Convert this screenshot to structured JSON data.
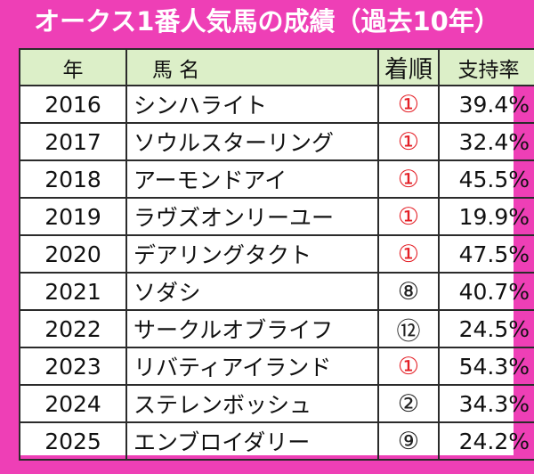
{
  "title": "オークス1番人気馬の成績（過去10年）",
  "colors": {
    "background": "#ee3fb6",
    "header": "#dcefc8",
    "win": "#e41f26"
  },
  "headers": {
    "year": "年",
    "name": "馬 名",
    "rank": "着順",
    "pct": "支持率"
  },
  "rows": [
    {
      "year": "2016",
      "name": "シンハライト",
      "rank": "①",
      "win": true,
      "pct": "39.4%"
    },
    {
      "year": "2017",
      "name": "ソウルスターリング",
      "rank": "①",
      "win": true,
      "pct": "32.4%"
    },
    {
      "year": "2018",
      "name": "アーモンドアイ",
      "rank": "①",
      "win": true,
      "pct": "45.5%"
    },
    {
      "year": "2019",
      "name": "ラヴズオンリーユー",
      "rank": "①",
      "win": true,
      "pct": "19.9%"
    },
    {
      "year": "2020",
      "name": "デアリングタクト",
      "rank": "①",
      "win": true,
      "pct": "47.5%"
    },
    {
      "year": "2021",
      "name": "ソダシ",
      "rank": "⑧",
      "win": false,
      "pct": "40.7%"
    },
    {
      "year": "2022",
      "name": "サークルオブライフ",
      "rank": "⑫",
      "win": false,
      "pct": "24.5%"
    },
    {
      "year": "2023",
      "name": "リバティアイランド",
      "rank": "①",
      "win": true,
      "pct": "54.3%"
    },
    {
      "year": "2024",
      "name": "ステレンボッシュ",
      "rank": "②",
      "win": false,
      "pct": "34.3%"
    },
    {
      "year": "2025",
      "name": "エンブロイダリー",
      "rank": "⑨",
      "win": false,
      "pct": "24.2%"
    }
  ]
}
